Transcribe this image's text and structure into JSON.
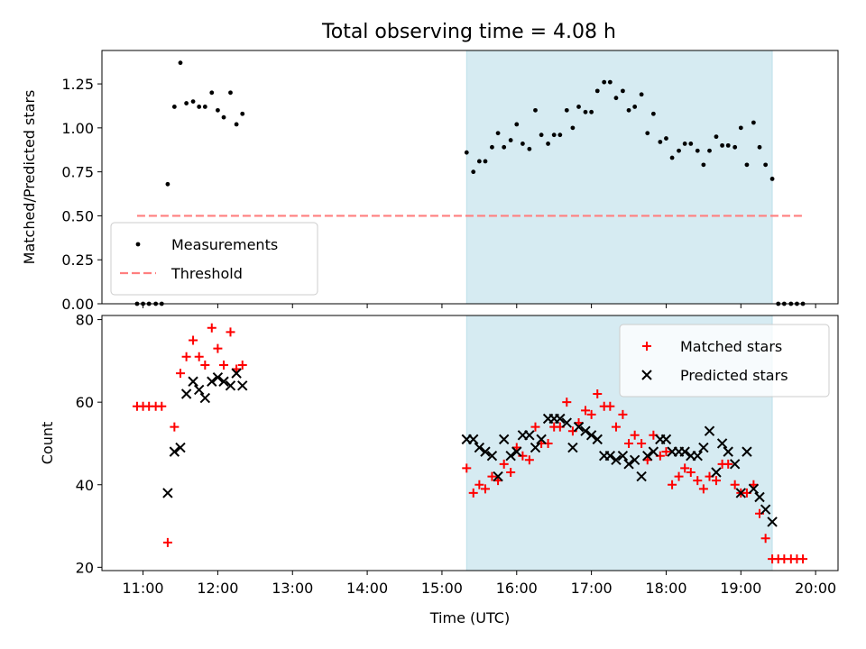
{
  "figure": {
    "title": "Total observing time = 4.08 h"
  },
  "chart_data": [
    {
      "type": "scatter",
      "ylabel": "Matched/Predicted stars",
      "xlabel": "",
      "xlim": [
        10.45,
        20.3
      ],
      "ylim": [
        0,
        1.44
      ],
      "xticks": [
        11,
        12,
        13,
        14,
        15,
        16,
        17,
        18,
        19,
        20
      ],
      "yticks": [
        0.0,
        0.25,
        0.5,
        0.75,
        1.0,
        1.25
      ],
      "ytick_labels": [
        "0.00",
        "0.25",
        "0.50",
        "0.75",
        "1.00",
        "1.25"
      ],
      "shaded_span": [
        15.33,
        19.42
      ],
      "threshold": {
        "name": "Threshold",
        "y": 0.5,
        "x_range": [
          10.92,
          19.83
        ],
        "color": "#ff7f7f"
      },
      "legend_position": "lower-left",
      "series": [
        {
          "name": "Measurements",
          "marker": "dot",
          "color": "#000000",
          "points": [
            [
              10.92,
              0
            ],
            [
              11.0,
              0
            ],
            [
              11.08,
              0
            ],
            [
              11.17,
              0
            ],
            [
              11.25,
              0
            ],
            [
              11.33,
              0.68
            ],
            [
              11.42,
              1.12
            ],
            [
              11.5,
              1.37
            ],
            [
              11.58,
              1.14
            ],
            [
              11.67,
              1.15
            ],
            [
              11.75,
              1.12
            ],
            [
              11.83,
              1.12
            ],
            [
              11.92,
              1.2
            ],
            [
              12.0,
              1.1
            ],
            [
              12.08,
              1.06
            ],
            [
              12.17,
              1.2
            ],
            [
              12.25,
              1.02
            ],
            [
              12.33,
              1.08
            ],
            [
              15.33,
              0.86
            ],
            [
              15.42,
              0.75
            ],
            [
              15.5,
              0.81
            ],
            [
              15.58,
              0.81
            ],
            [
              15.67,
              0.89
            ],
            [
              15.75,
              0.97
            ],
            [
              15.83,
              0.89
            ],
            [
              15.92,
              0.93
            ],
            [
              16.0,
              1.02
            ],
            [
              16.08,
              0.91
            ],
            [
              16.17,
              0.88
            ],
            [
              16.25,
              1.1
            ],
            [
              16.33,
              0.96
            ],
            [
              16.42,
              0.91
            ],
            [
              16.5,
              0.96
            ],
            [
              16.58,
              0.96
            ],
            [
              16.67,
              1.1
            ],
            [
              16.75,
              1.0
            ],
            [
              16.83,
              1.12
            ],
            [
              16.92,
              1.09
            ],
            [
              17.0,
              1.09
            ],
            [
              17.08,
              1.21
            ],
            [
              17.17,
              1.26
            ],
            [
              17.25,
              1.26
            ],
            [
              17.33,
              1.17
            ],
            [
              17.42,
              1.21
            ],
            [
              17.5,
              1.1
            ],
            [
              17.58,
              1.12
            ],
            [
              17.67,
              1.19
            ],
            [
              17.75,
              0.97
            ],
            [
              17.83,
              1.08
            ],
            [
              17.92,
              0.92
            ],
            [
              18.0,
              0.94
            ],
            [
              18.08,
              0.83
            ],
            [
              18.17,
              0.87
            ],
            [
              18.25,
              0.91
            ],
            [
              18.33,
              0.91
            ],
            [
              18.42,
              0.87
            ],
            [
              18.5,
              0.79
            ],
            [
              18.58,
              0.87
            ],
            [
              18.67,
              0.95
            ],
            [
              18.75,
              0.9
            ],
            [
              18.83,
              0.9
            ],
            [
              18.92,
              0.89
            ],
            [
              19.0,
              1.0
            ],
            [
              19.08,
              0.79
            ],
            [
              19.17,
              1.03
            ],
            [
              19.25,
              0.89
            ],
            [
              19.33,
              0.79
            ],
            [
              19.42,
              0.71
            ],
            [
              19.5,
              0
            ],
            [
              19.58,
              0
            ],
            [
              19.67,
              0
            ],
            [
              19.75,
              0
            ],
            [
              19.83,
              0
            ]
          ]
        }
      ]
    },
    {
      "type": "scatter",
      "xlabel": "Time (UTC)",
      "ylabel": "Count",
      "xlim": [
        10.45,
        20.3
      ],
      "ylim": [
        19.2,
        81
      ],
      "xticks": [
        11,
        12,
        13,
        14,
        15,
        16,
        17,
        18,
        19,
        20
      ],
      "xtick_labels": [
        "11:00",
        "12:00",
        "13:00",
        "14:00",
        "15:00",
        "16:00",
        "17:00",
        "18:00",
        "19:00",
        "20:00"
      ],
      "yticks": [
        20,
        40,
        60,
        80
      ],
      "ytick_labels": [
        "20",
        "40",
        "60",
        "80"
      ],
      "shaded_span": [
        15.33,
        19.42
      ],
      "legend_position": "upper-right",
      "series": [
        {
          "name": "Matched stars",
          "marker": "plus",
          "color": "#ff0000",
          "points": [
            [
              10.92,
              59
            ],
            [
              11.0,
              59
            ],
            [
              11.08,
              59
            ],
            [
              11.17,
              59
            ],
            [
              11.25,
              59
            ],
            [
              11.33,
              26
            ],
            [
              11.42,
              54
            ],
            [
              11.5,
              67
            ],
            [
              11.58,
              71
            ],
            [
              11.67,
              75
            ],
            [
              11.75,
              71
            ],
            [
              11.83,
              69
            ],
            [
              11.92,
              78
            ],
            [
              12.0,
              73
            ],
            [
              12.08,
              69
            ],
            [
              12.17,
              77
            ],
            [
              12.25,
              68
            ],
            [
              12.33,
              69
            ],
            [
              15.33,
              44
            ],
            [
              15.42,
              38
            ],
            [
              15.5,
              40
            ],
            [
              15.58,
              39
            ],
            [
              15.67,
              42
            ],
            [
              15.75,
              41
            ],
            [
              15.83,
              45
            ],
            [
              15.92,
              43
            ],
            [
              16.0,
              49
            ],
            [
              16.08,
              47
            ],
            [
              16.17,
              46
            ],
            [
              16.25,
              54
            ],
            [
              16.33,
              50
            ],
            [
              16.42,
              50
            ],
            [
              16.5,
              54
            ],
            [
              16.58,
              54
            ],
            [
              16.67,
              60
            ],
            [
              16.75,
              53
            ],
            [
              16.83,
              55
            ],
            [
              16.92,
              58
            ],
            [
              17.0,
              57
            ],
            [
              17.08,
              62
            ],
            [
              17.17,
              59
            ],
            [
              17.25,
              59
            ],
            [
              17.33,
              54
            ],
            [
              17.42,
              57
            ],
            [
              17.5,
              50
            ],
            [
              17.58,
              52
            ],
            [
              17.67,
              50
            ],
            [
              17.75,
              46
            ],
            [
              17.83,
              52
            ],
            [
              17.92,
              47
            ],
            [
              18.0,
              48
            ],
            [
              18.08,
              40
            ],
            [
              18.17,
              42
            ],
            [
              18.25,
              44
            ],
            [
              18.33,
              43
            ],
            [
              18.42,
              41
            ],
            [
              18.5,
              39
            ],
            [
              18.58,
              42
            ],
            [
              18.67,
              41
            ],
            [
              18.75,
              45
            ],
            [
              18.83,
              45
            ],
            [
              18.92,
              40
            ],
            [
              19.0,
              38
            ],
            [
              19.08,
              38
            ],
            [
              19.17,
              40
            ],
            [
              19.25,
              33
            ],
            [
              19.33,
              27
            ],
            [
              19.42,
              22
            ],
            [
              19.5,
              22
            ],
            [
              19.58,
              22
            ],
            [
              19.67,
              22
            ],
            [
              19.75,
              22
            ],
            [
              19.83,
              22
            ]
          ]
        },
        {
          "name": "Predicted stars",
          "marker": "x",
          "color": "#000000",
          "points": [
            [
              11.33,
              38
            ],
            [
              11.42,
              48
            ],
            [
              11.5,
              49
            ],
            [
              11.58,
              62
            ],
            [
              11.67,
              65
            ],
            [
              11.75,
              63
            ],
            [
              11.83,
              61
            ],
            [
              11.92,
              65
            ],
            [
              12.0,
              66
            ],
            [
              12.08,
              65
            ],
            [
              12.17,
              64
            ],
            [
              12.25,
              67
            ],
            [
              12.33,
              64
            ],
            [
              15.33,
              51
            ],
            [
              15.42,
              51
            ],
            [
              15.5,
              49
            ],
            [
              15.58,
              48
            ],
            [
              15.67,
              47
            ],
            [
              15.75,
              42
            ],
            [
              15.83,
              51
            ],
            [
              15.92,
              47
            ],
            [
              16.0,
              48
            ],
            [
              16.08,
              52
            ],
            [
              16.17,
              52
            ],
            [
              16.25,
              49
            ],
            [
              16.33,
              51
            ],
            [
              16.42,
              56
            ],
            [
              16.5,
              56
            ],
            [
              16.58,
              56
            ],
            [
              16.67,
              55
            ],
            [
              16.75,
              49
            ],
            [
              16.83,
              54
            ],
            [
              16.92,
              53
            ],
            [
              17.0,
              52
            ],
            [
              17.08,
              51
            ],
            [
              17.17,
              47
            ],
            [
              17.25,
              47
            ],
            [
              17.33,
              46
            ],
            [
              17.42,
              47
            ],
            [
              17.5,
              45
            ],
            [
              17.58,
              46
            ],
            [
              17.67,
              42
            ],
            [
              17.75,
              47
            ],
            [
              17.83,
              48
            ],
            [
              17.92,
              51
            ],
            [
              18.0,
              51
            ],
            [
              18.08,
              48
            ],
            [
              18.17,
              48
            ],
            [
              18.25,
              48
            ],
            [
              18.33,
              47
            ],
            [
              18.42,
              47
            ],
            [
              18.5,
              49
            ],
            [
              18.58,
              53
            ],
            [
              18.67,
              43
            ],
            [
              18.75,
              50
            ],
            [
              18.83,
              48
            ],
            [
              18.92,
              45
            ],
            [
              19.0,
              38
            ],
            [
              19.08,
              48
            ],
            [
              19.17,
              39
            ],
            [
              19.25,
              37
            ],
            [
              19.33,
              34
            ],
            [
              19.42,
              31
            ]
          ]
        }
      ]
    }
  ]
}
